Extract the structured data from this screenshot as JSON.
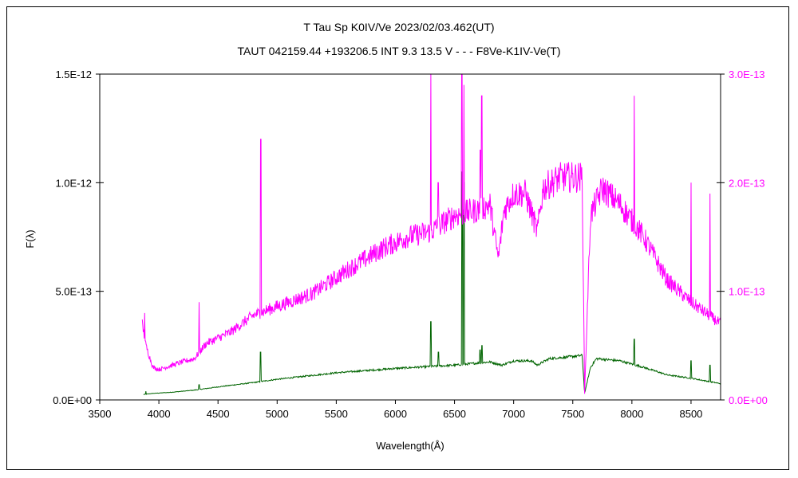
{
  "chart_data": {
    "type": "line",
    "title": "T Tau    Sp K0IV/Ve    2023/02/03.462(UT)",
    "subtitle": "TAUT 042159.44 +193206.5 INT 9.3 13.5 V - - - F8Ve-K1IV-Ve(T)",
    "xlabel": "Wavelength(Å)",
    "ylabel": "F(λ)",
    "xlim": [
      3500,
      8750
    ],
    "ylim_left": [
      0,
      1.5e-12
    ],
    "ylim_right": [
      0,
      3e-13
    ],
    "x_ticks": [
      "3500",
      "4000",
      "4500",
      "5000",
      "5500",
      "6000",
      "6500",
      "7000",
      "7500",
      "8000",
      "8500"
    ],
    "x_tick_values": [
      3500,
      4000,
      4500,
      5000,
      5500,
      6000,
      6500,
      7000,
      7500,
      8000,
      8500
    ],
    "y_left_ticks": [
      "0.0E+00",
      "5.0E-13",
      "1.0E-12",
      "1.5E-12"
    ],
    "y_left_tick_values": [
      0,
      5e-13,
      1e-12,
      1.5e-12
    ],
    "y_right_ticks": [
      "0.0E+00",
      "1.0E-13",
      "2.0E-13",
      "3.0E-13"
    ],
    "y_right_tick_values": [
      0,
      1e-13,
      2e-13,
      3e-13
    ],
    "grid": false,
    "legend": "none",
    "series": [
      {
        "axis": "left",
        "color": "#006400",
        "continuum": [
          [
            3870,
            2.5e-14
          ],
          [
            3950,
            3e-14
          ],
          [
            4100,
            3.5e-14
          ],
          [
            4300,
            4.5e-14
          ],
          [
            4500,
            6e-14
          ],
          [
            4800,
            8e-14
          ],
          [
            5000,
            9.5e-14
          ],
          [
            5500,
            1.25e-13
          ],
          [
            6000,
            1.45e-13
          ],
          [
            6500,
            1.6e-13
          ],
          [
            6800,
            1.75e-13
          ],
          [
            6900,
            1.6e-13
          ],
          [
            7000,
            1.8e-13
          ],
          [
            7150,
            1.8e-13
          ],
          [
            7200,
            1.6e-13
          ],
          [
            7300,
            1.9e-13
          ],
          [
            7500,
            2e-13
          ],
          [
            7580,
            2.05e-13
          ],
          [
            7600,
            3e-14
          ],
          [
            7650,
            1.5e-13
          ],
          [
            7700,
            1.9e-13
          ],
          [
            7900,
            1.8e-13
          ],
          [
            8100,
            1.5e-13
          ],
          [
            8300,
            1.15e-13
          ],
          [
            8500,
            1e-13
          ],
          [
            8750,
            7.5e-14
          ]
        ],
        "peaks": [
          [
            3890,
            4e-14
          ],
          [
            4340,
            7e-14
          ],
          [
            4861,
            2.2e-13
          ],
          [
            6300,
            3.6e-13
          ],
          [
            6363,
            2.2e-13
          ],
          [
            6563,
            1.05e-12
          ],
          [
            6580,
            1e-12
          ],
          [
            6717,
            2.3e-13
          ],
          [
            6731,
            2.5e-13
          ],
          [
            8020,
            2.8e-13
          ],
          [
            8500,
            1.8e-13
          ],
          [
            8660,
            1.6e-13
          ]
        ]
      },
      {
        "axis": "right",
        "color": "#ff00ff",
        "continuum": [
          [
            3860,
            7e-14
          ],
          [
            3890,
            5e-14
          ],
          [
            3950,
            3e-14
          ],
          [
            4000,
            2.8e-14
          ],
          [
            4200,
            3.5e-14
          ],
          [
            4300,
            3.8e-14
          ],
          [
            4400,
            5.2e-14
          ],
          [
            4600,
            6.2e-14
          ],
          [
            4800,
            7.8e-14
          ],
          [
            5000,
            8.6e-14
          ],
          [
            5300,
            9.8e-14
          ],
          [
            5600,
            1.2e-13
          ],
          [
            5900,
            1.4e-13
          ],
          [
            6100,
            1.5e-13
          ],
          [
            6300,
            1.55e-13
          ],
          [
            6500,
            1.7e-13
          ],
          [
            6700,
            1.75e-13
          ],
          [
            6800,
            1.8e-13
          ],
          [
            6870,
            1.3e-13
          ],
          [
            6920,
            1.75e-13
          ],
          [
            7000,
            1.9e-13
          ],
          [
            7100,
            1.9e-13
          ],
          [
            7200,
            1.55e-13
          ],
          [
            7250,
            1.95e-13
          ],
          [
            7400,
            2.05e-13
          ],
          [
            7580,
            2.05e-13
          ],
          [
            7600,
            6e-15
          ],
          [
            7650,
            1.7e-13
          ],
          [
            7750,
            1.95e-13
          ],
          [
            7900,
            1.8e-13
          ],
          [
            8100,
            1.5e-13
          ],
          [
            8300,
            1.1e-13
          ],
          [
            8500,
            9e-14
          ],
          [
            8750,
            7e-14
          ]
        ],
        "peaks": [
          [
            3880,
            8e-14
          ],
          [
            4340,
            9e-14
          ],
          [
            4861,
            2.4e-13
          ],
          [
            6300,
            3e-13
          ],
          [
            6363,
            2e-13
          ],
          [
            6563,
            3e-13
          ],
          [
            6580,
            2.9e-13
          ],
          [
            6717,
            2.3e-13
          ],
          [
            6731,
            2.8e-13
          ],
          [
            8020,
            2.8e-13
          ],
          [
            8500,
            2e-13
          ],
          [
            8660,
            1.9e-13
          ]
        ]
      }
    ]
  }
}
